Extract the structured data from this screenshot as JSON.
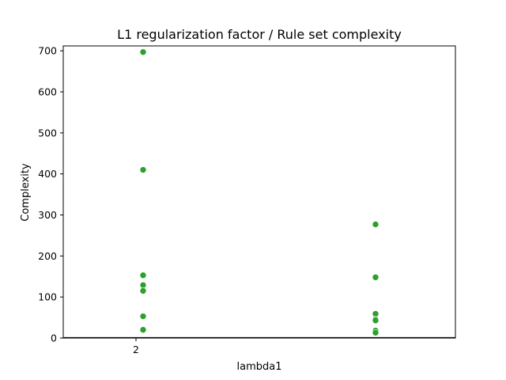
{
  "chart_data": {
    "type": "scatter",
    "title": "L1 regularization factor / Rule set complexity",
    "xlabel": "lambda1",
    "ylabel": "Complexity",
    "x_tick_labels": [
      "2"
    ],
    "y_ticks": [
      0,
      100,
      200,
      300,
      400,
      500,
      600,
      700
    ],
    "ylim": [
      0,
      712
    ],
    "grid": false,
    "legend": "none",
    "point_color": "#2ca02c",
    "series": [
      {
        "points": [
          {
            "group": 0,
            "y": 697
          },
          {
            "group": 0,
            "y": 410
          },
          {
            "group": 0,
            "y": 153
          },
          {
            "group": 0,
            "y": 129
          },
          {
            "group": 0,
            "y": 115
          },
          {
            "group": 0,
            "y": 53
          },
          {
            "group": 0,
            "y": 20
          },
          {
            "group": 1,
            "y": 277
          },
          {
            "group": 1,
            "y": 148
          },
          {
            "group": 1,
            "y": 59
          },
          {
            "group": 1,
            "y": 46
          },
          {
            "group": 1,
            "y": 43
          },
          {
            "group": 1,
            "y": 18
          },
          {
            "group": 1,
            "y": 13
          }
        ]
      }
    ]
  }
}
